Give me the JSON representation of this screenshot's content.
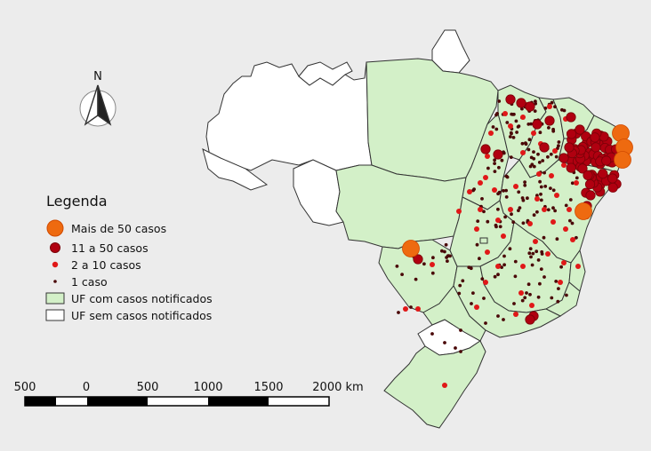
{
  "north_arrow": {
    "label": "N"
  },
  "legend": {
    "title": "Legenda",
    "items": [
      {
        "label": "Mais de 50 casos",
        "symbol": "circle",
        "color": "#ee6a10",
        "stroke": "#d04a00"
      },
      {
        "label": "11 a 50 casos",
        "symbol": "circle",
        "color": "#b00010",
        "stroke": "#7a0008"
      },
      {
        "label": "2 a 10 casos",
        "symbol": "circle",
        "color": "#e01818",
        "stroke": "#e01818"
      },
      {
        "label": "1 caso",
        "symbol": "circle",
        "color": "#4a0808",
        "stroke": "#4a0808"
      },
      {
        "label": "UF com casos notificados",
        "symbol": "box",
        "color": "#d3f0c8",
        "stroke": "#333333"
      },
      {
        "label": "UF sem casos notificados",
        "symbol": "box",
        "color": "#ffffff",
        "stroke": "#333333"
      }
    ]
  },
  "scale_bar": {
    "labels": [
      "500",
      "0",
      "500",
      "1000",
      "1500",
      "2000 km"
    ]
  },
  "colors": {
    "background": "#ececec",
    "uf_with_cases": "#d3f0c8",
    "uf_without_cases": "#ffffff",
    "border": "#333333",
    "marker_large": "#ee6a10",
    "marker_medium": "#b00010",
    "marker_small": "#e01818",
    "marker_single": "#4a0808"
  }
}
